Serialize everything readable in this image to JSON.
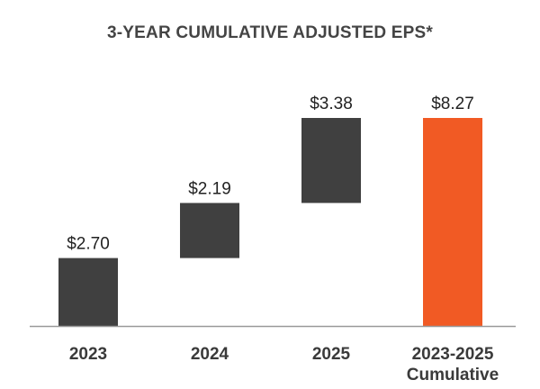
{
  "chart_data": {
    "type": "waterfall",
    "title": "3-YEAR CUMULATIVE ADJUSTED EPS*",
    "categories": [
      [
        "2023"
      ],
      [
        "2024"
      ],
      [
        "2025"
      ],
      [
        "2023-2025",
        "Cumulative"
      ]
    ],
    "values": [
      2.7,
      2.19,
      3.38,
      8.27
    ],
    "labels": [
      "$2.70",
      "$2.19",
      "$3.38",
      "$8.27"
    ],
    "bar_kinds": [
      "increment",
      "increment",
      "increment",
      "total"
    ],
    "ylim": [
      0,
      8.27
    ],
    "grid": false,
    "legend": "none",
    "colors": {
      "increment": "#404040",
      "total": "#f15a24",
      "axis": "#999999"
    }
  }
}
